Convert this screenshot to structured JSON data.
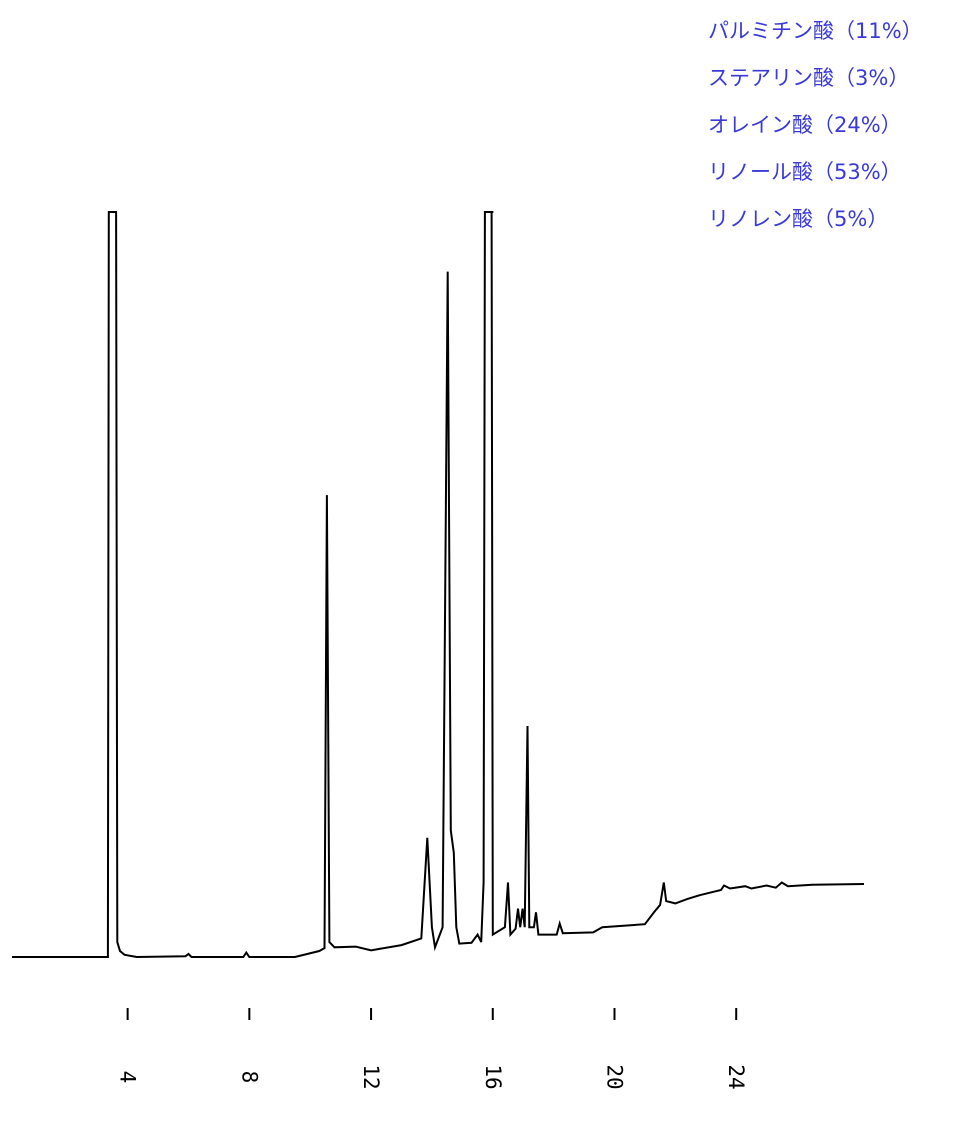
{
  "legend": {
    "items": [
      {
        "label": "パルミチン酸（11%）"
      },
      {
        "label": "ステアリン酸（3%）"
      },
      {
        "label": "オレイン酸（24%）"
      },
      {
        "label": "リノール酸（53%）"
      },
      {
        "label": "リノレン酸（5%）"
      }
    ],
    "color": "#3a3ad9"
  },
  "chart_data": {
    "type": "line",
    "title": "",
    "xlabel": "",
    "ylabel": "",
    "x_ticks": [
      4,
      8,
      12,
      16,
      20,
      24
    ],
    "tick_labels": [
      "4",
      "8",
      "12",
      "16",
      "20",
      "24"
    ],
    "xlim": [
      0.2,
      28.2
    ],
    "ylim": [
      0,
      100
    ],
    "grid": false,
    "line_color": "#000000",
    "baseline": 0,
    "clipped_peaks": [
      3.5,
      15.9
    ],
    "points": [
      [
        0.2,
        0
      ],
      [
        3.3,
        0
      ],
      [
        3.35,
        0
      ],
      [
        3.38,
        100
      ],
      [
        3.62,
        100
      ],
      [
        3.66,
        2
      ],
      [
        3.75,
        0.8
      ],
      [
        3.9,
        0.3
      ],
      [
        4.3,
        0
      ],
      [
        5.9,
        0.1
      ],
      [
        6.0,
        0.4
      ],
      [
        6.1,
        0
      ],
      [
        7.8,
        0
      ],
      [
        7.9,
        0.6
      ],
      [
        8.0,
        0
      ],
      [
        9.5,
        0
      ],
      [
        10.3,
        0.8
      ],
      [
        10.47,
        1.2
      ],
      [
        10.55,
        62
      ],
      [
        10.63,
        2
      ],
      [
        10.8,
        1.3
      ],
      [
        11.5,
        1.4
      ],
      [
        12.0,
        0.9
      ],
      [
        13.0,
        1.6
      ],
      [
        13.65,
        2.5
      ],
      [
        13.85,
        16
      ],
      [
        14.0,
        4
      ],
      [
        14.1,
        1.3
      ],
      [
        14.35,
        4
      ],
      [
        14.52,
        92
      ],
      [
        14.62,
        17
      ],
      [
        14.72,
        14
      ],
      [
        14.8,
        4
      ],
      [
        14.9,
        1.8
      ],
      [
        15.3,
        1.9
      ],
      [
        15.5,
        3
      ],
      [
        15.62,
        2
      ],
      [
        15.7,
        10
      ],
      [
        15.74,
        100
      ],
      [
        15.96,
        100
      ],
      [
        16.0,
        3
      ],
      [
        16.2,
        3.5
      ],
      [
        16.4,
        4
      ],
      [
        16.5,
        10
      ],
      [
        16.58,
        3
      ],
      [
        16.75,
        3.8
      ],
      [
        16.83,
        6.5
      ],
      [
        16.9,
        4
      ],
      [
        16.98,
        6.5
      ],
      [
        17.05,
        4
      ],
      [
        17.14,
        31
      ],
      [
        17.2,
        4
      ],
      [
        17.35,
        4
      ],
      [
        17.42,
        6
      ],
      [
        17.5,
        3
      ],
      [
        18.1,
        3
      ],
      [
        18.2,
        4.5
      ],
      [
        18.3,
        3.2
      ],
      [
        19.3,
        3.3
      ],
      [
        19.6,
        4
      ],
      [
        20.3,
        4.2
      ],
      [
        21.0,
        4.4
      ],
      [
        21.3,
        6
      ],
      [
        21.5,
        7
      ],
      [
        21.62,
        10
      ],
      [
        21.7,
        7.5
      ],
      [
        22.0,
        7.2
      ],
      [
        22.4,
        7.8
      ],
      [
        22.8,
        8.3
      ],
      [
        23.2,
        8.7
      ],
      [
        23.5,
        9
      ],
      [
        23.6,
        9.6
      ],
      [
        23.8,
        9.2
      ],
      [
        24.3,
        9.5
      ],
      [
        24.5,
        9.2
      ],
      [
        25.0,
        9.6
      ],
      [
        25.3,
        9.3
      ],
      [
        25.5,
        10
      ],
      [
        25.7,
        9.5
      ],
      [
        26.5,
        9.7
      ],
      [
        28.2,
        9.8
      ]
    ]
  }
}
